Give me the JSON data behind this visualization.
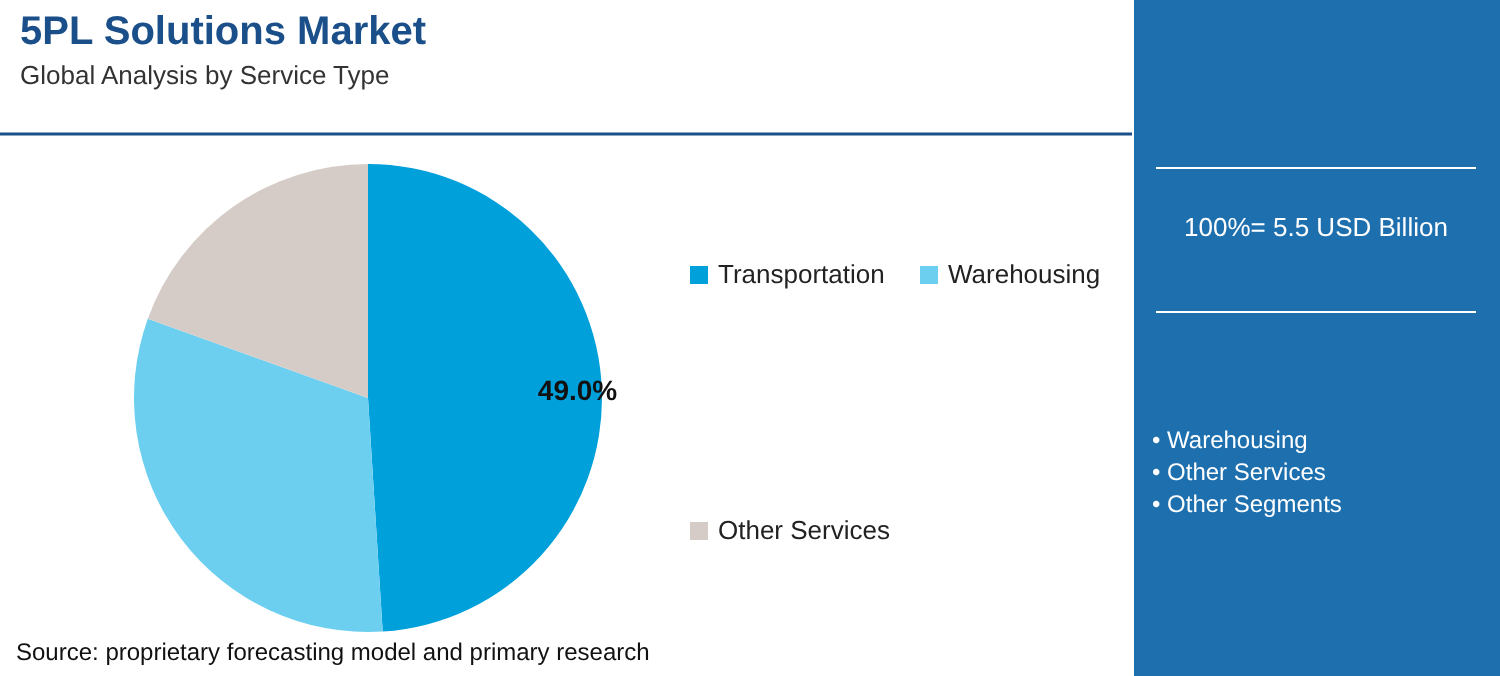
{
  "chart_data": {
    "type": "pie",
    "title": "5PL Solutions Market",
    "subtitle": "Global Analysis by Service Type",
    "categories": [
      "Transportation",
      "Warehousing",
      "Other Services"
    ],
    "values": [
      49.0,
      31.5,
      19.5
    ],
    "colors": [
      "#00a0db",
      "#6ccff0",
      "#d5ccc8"
    ],
    "value_labels": [
      "49.0%",
      null,
      null
    ],
    "legend": "right",
    "annotations": [
      "100%= 5.5 USD Billion",
      "• Warehousing",
      "• Other Services",
      "• Other Segments",
      "Source: proprietary forecasting model and primary research"
    ]
  }
}
